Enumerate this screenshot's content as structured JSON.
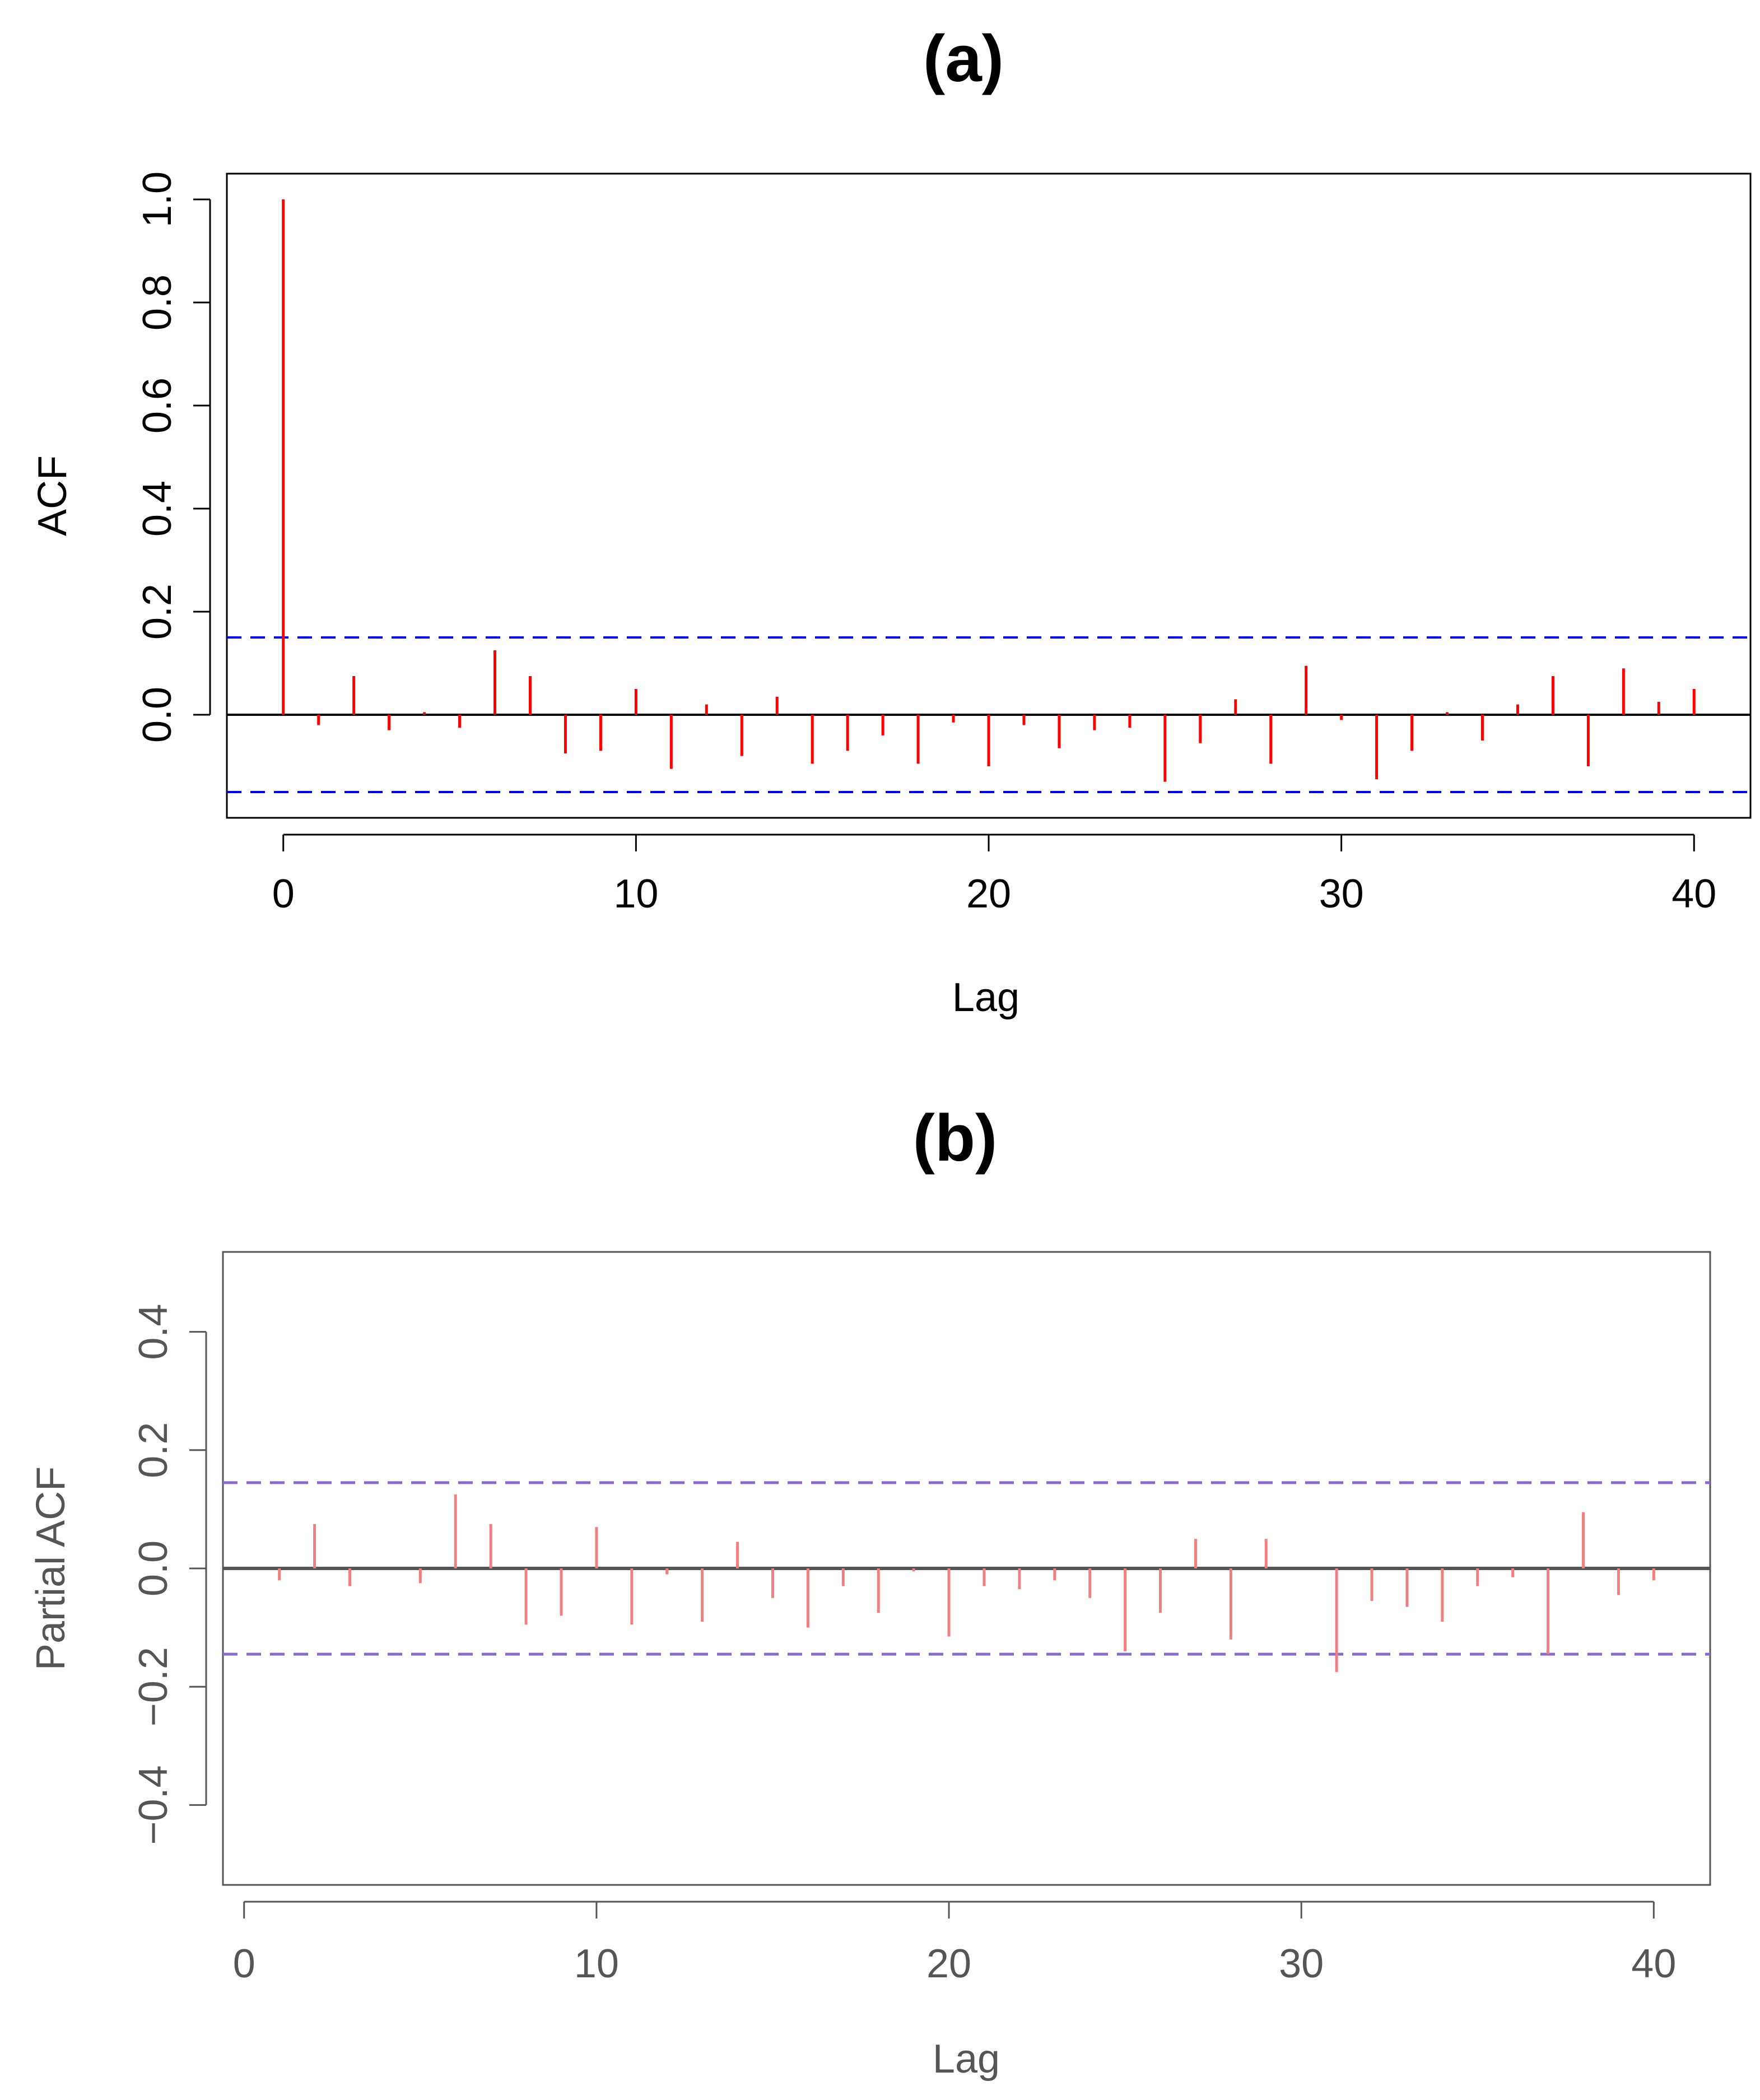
{
  "chart_data": [
    {
      "panel": "a",
      "type": "bar",
      "title": "(a)",
      "xlabel": "Lag",
      "ylabel": "ACF",
      "xlim": [
        -1.6,
        41.6
      ],
      "ylim": [
        -0.2,
        1.05
      ],
      "xticks": [
        "0",
        "10",
        "20",
        "30",
        "40"
      ],
      "yticks": [
        "0.0",
        "0.2",
        "0.4",
        "0.6",
        "0.8",
        "1.0"
      ],
      "confidence_band": [
        0.15,
        -0.15
      ],
      "x": [
        0,
        1,
        2,
        3,
        4,
        5,
        6,
        7,
        8,
        9,
        10,
        11,
        12,
        13,
        14,
        15,
        16,
        17,
        18,
        19,
        20,
        21,
        22,
        23,
        24,
        25,
        26,
        27,
        28,
        29,
        30,
        31,
        32,
        33,
        34,
        35,
        36,
        37,
        38,
        39,
        40
      ],
      "values": [
        1.0,
        -0.02,
        0.075,
        -0.03,
        0.005,
        -0.025,
        0.125,
        0.075,
        -0.075,
        -0.07,
        0.05,
        -0.105,
        0.02,
        -0.08,
        0.035,
        -0.095,
        -0.07,
        -0.04,
        -0.095,
        -0.015,
        -0.1,
        -0.02,
        -0.065,
        -0.03,
        -0.025,
        -0.13,
        -0.055,
        0.03,
        -0.095,
        0.095,
        -0.01,
        -0.125,
        -0.07,
        0.005,
        -0.05,
        0.02,
        0.075,
        -0.1,
        0.09,
        0.025,
        0.05
      ],
      "colors": {
        "spikes": "#ff0000",
        "band": "#0000ff",
        "zero": "#000000"
      }
    },
    {
      "panel": "b",
      "type": "bar",
      "title": "(b)",
      "xlabel": "Lag",
      "ylabel": "Partial ACF",
      "xlim": [
        -0.6,
        41.6
      ],
      "ylim": [
        -0.535,
        0.535
      ],
      "xticks": [
        "0",
        "10",
        "20",
        "30",
        "40"
      ],
      "yticks": [
        "−0.4",
        "−0.2",
        "0.0",
        "0.2",
        "0.4"
      ],
      "confidence_band": [
        0.145,
        -0.145
      ],
      "x": [
        1,
        2,
        3,
        4,
        5,
        6,
        7,
        8,
        9,
        10,
        11,
        12,
        13,
        14,
        15,
        16,
        17,
        18,
        19,
        20,
        21,
        22,
        23,
        24,
        25,
        26,
        27,
        28,
        29,
        30,
        31,
        32,
        33,
        34,
        35,
        36,
        37,
        38,
        39,
        40
      ],
      "values": [
        -0.02,
        0.075,
        -0.03,
        0.0,
        -0.025,
        0.125,
        0.075,
        -0.095,
        -0.08,
        0.07,
        -0.095,
        -0.01,
        -0.09,
        0.045,
        -0.05,
        -0.1,
        -0.03,
        -0.075,
        -0.005,
        -0.115,
        -0.03,
        -0.035,
        -0.02,
        -0.05,
        -0.14,
        -0.075,
        0.05,
        -0.12,
        0.05,
        0.0,
        -0.175,
        -0.055,
        -0.065,
        -0.09,
        -0.03,
        -0.015,
        -0.145,
        0.095,
        -0.045,
        -0.02
      ],
      "colors": {
        "spikes": "#f08080",
        "band": "#8a6ad0",
        "zero": "#555555"
      }
    }
  ]
}
